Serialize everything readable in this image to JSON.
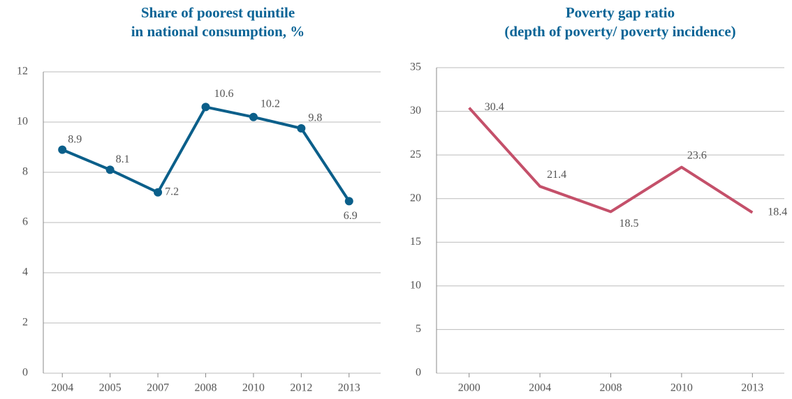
{
  "chart_data": [
    {
      "type": "line",
      "title": [
        "Share of poorest quintile",
        "in national consumption, %"
      ],
      "categories": [
        "2004",
        "2005",
        "2007",
        "2008",
        "2010",
        "2012",
        "2013"
      ],
      "series": [
        {
          "name": "Share of poorest quintile",
          "color": "#0b5f8a",
          "values": [
            8.9,
            8.1,
            7.2,
            10.6,
            10.2,
            9.75,
            6.85
          ],
          "value_labels": [
            "8.9",
            "8.1",
            "7.2",
            "10.6",
            "10.2",
            "9.8",
            "6.9"
          ]
        }
      ],
      "ylim": [
        0,
        12
      ],
      "yticks": [
        0,
        2,
        4,
        6,
        8,
        10,
        12
      ],
      "grid": true,
      "markers": true
    },
    {
      "type": "line",
      "title": [
        "Poverty gap ratio",
        "(depth of poverty/ poverty incidence)"
      ],
      "categories": [
        "2000",
        "2004",
        "2008",
        "2010",
        "2013"
      ],
      "series": [
        {
          "name": "Poverty gap ratio",
          "color": "#c4506a",
          "values": [
            30.4,
            21.4,
            18.5,
            23.6,
            18.4
          ]
        }
      ],
      "ylim": [
        0,
        35
      ],
      "yticks": [
        0,
        5,
        10,
        15,
        20,
        25,
        30,
        35
      ],
      "grid": true,
      "markers": false
    }
  ]
}
